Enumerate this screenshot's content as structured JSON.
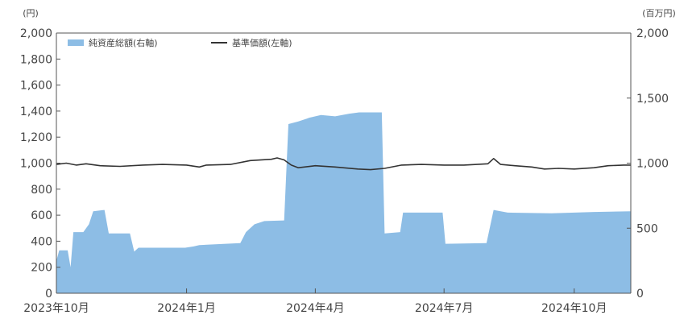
{
  "chart_data": {
    "type": "area",
    "left_axis": {
      "unit": "(円)",
      "ylim": [
        0,
        2000
      ],
      "ticks": [
        "0",
        "200",
        "400",
        "600",
        "800",
        "1,000",
        "1,200",
        "1,400",
        "1,600",
        "1,800",
        "2,000"
      ]
    },
    "right_axis": {
      "unit": "(百万円)",
      "ylim": [
        0,
        2000
      ],
      "ticks": [
        "0",
        "500",
        "1,000",
        "1,500",
        "2,000"
      ]
    },
    "x_tick_labels": [
      "2023年10月",
      "2024年1月",
      "2024年4月",
      "2024年7月",
      "2024年10月"
    ],
    "x_range": [
      "2023-10-01",
      "2024-11-10"
    ],
    "legend": [
      {
        "name": "純資産総額(右軸)",
        "color": "#8dbde5",
        "kind": "area"
      },
      {
        "name": "基準価額(左軸)",
        "color": "#333333",
        "kind": "line"
      }
    ],
    "grid": false,
    "series": [
      {
        "name": "純資産総額(右軸)",
        "axis": "right",
        "color": "#8dbde5",
        "points": [
          [
            "2023-10-01",
            250
          ],
          [
            "2023-10-03",
            330
          ],
          [
            "2023-10-09",
            330
          ],
          [
            "2023-10-11",
            200
          ],
          [
            "2023-10-13",
            470
          ],
          [
            "2023-10-20",
            470
          ],
          [
            "2023-10-24",
            530
          ],
          [
            "2023-10-27",
            630
          ],
          [
            "2023-11-04",
            640
          ],
          [
            "2023-11-07",
            460
          ],
          [
            "2023-11-22",
            460
          ],
          [
            "2023-11-25",
            320
          ],
          [
            "2023-11-28",
            350
          ],
          [
            "2023-12-31",
            350
          ],
          [
            "2024-01-06",
            360
          ],
          [
            "2024-01-10",
            370
          ],
          [
            "2024-02-08",
            385
          ],
          [
            "2024-02-12",
            470
          ],
          [
            "2024-02-18",
            530
          ],
          [
            "2024-02-25",
            555
          ],
          [
            "2024-03-10",
            560
          ],
          [
            "2024-03-13",
            1300
          ],
          [
            "2024-03-20",
            1320
          ],
          [
            "2024-03-28",
            1350
          ],
          [
            "2024-04-05",
            1370
          ],
          [
            "2024-04-15",
            1360
          ],
          [
            "2024-04-25",
            1380
          ],
          [
            "2024-05-02",
            1390
          ],
          [
            "2024-05-18",
            1390
          ],
          [
            "2024-05-20",
            460
          ],
          [
            "2024-05-31",
            470
          ],
          [
            "2024-06-02",
            620
          ],
          [
            "2024-06-30",
            620
          ],
          [
            "2024-07-02",
            380
          ],
          [
            "2024-07-31",
            385
          ],
          [
            "2024-08-05",
            640
          ],
          [
            "2024-08-15",
            620
          ],
          [
            "2024-09-15",
            615
          ],
          [
            "2024-10-15",
            625
          ],
          [
            "2024-11-10",
            630
          ]
        ]
      },
      {
        "name": "基準価額(左軸)",
        "axis": "left",
        "color": "#333333",
        "points": [
          [
            "2023-10-01",
            990
          ],
          [
            "2023-10-08",
            1000
          ],
          [
            "2023-10-15",
            985
          ],
          [
            "2023-10-22",
            995
          ],
          [
            "2023-11-01",
            980
          ],
          [
            "2023-11-15",
            975
          ],
          [
            "2023-12-01",
            985
          ],
          [
            "2023-12-15",
            990
          ],
          [
            "2024-01-01",
            985
          ],
          [
            "2024-01-10",
            970
          ],
          [
            "2024-01-15",
            985
          ],
          [
            "2024-02-01",
            990
          ],
          [
            "2024-02-15",
            1020
          ],
          [
            "2024-03-01",
            1030
          ],
          [
            "2024-03-05",
            1040
          ],
          [
            "2024-03-10",
            1025
          ],
          [
            "2024-03-15",
            985
          ],
          [
            "2024-03-20",
            965
          ],
          [
            "2024-04-01",
            980
          ],
          [
            "2024-04-15",
            970
          ],
          [
            "2024-05-01",
            955
          ],
          [
            "2024-05-10",
            950
          ],
          [
            "2024-05-20",
            960
          ],
          [
            "2024-06-01",
            985
          ],
          [
            "2024-06-15",
            990
          ],
          [
            "2024-07-01",
            985
          ],
          [
            "2024-07-15",
            985
          ],
          [
            "2024-08-01",
            995
          ],
          [
            "2024-08-05",
            1035
          ],
          [
            "2024-08-10",
            990
          ],
          [
            "2024-08-20",
            980
          ],
          [
            "2024-09-01",
            970
          ],
          [
            "2024-09-10",
            955
          ],
          [
            "2024-09-20",
            960
          ],
          [
            "2024-10-01",
            955
          ],
          [
            "2024-10-15",
            965
          ],
          [
            "2024-10-25",
            980
          ],
          [
            "2024-11-05",
            985
          ],
          [
            "2024-11-10",
            985
          ]
        ]
      }
    ]
  }
}
